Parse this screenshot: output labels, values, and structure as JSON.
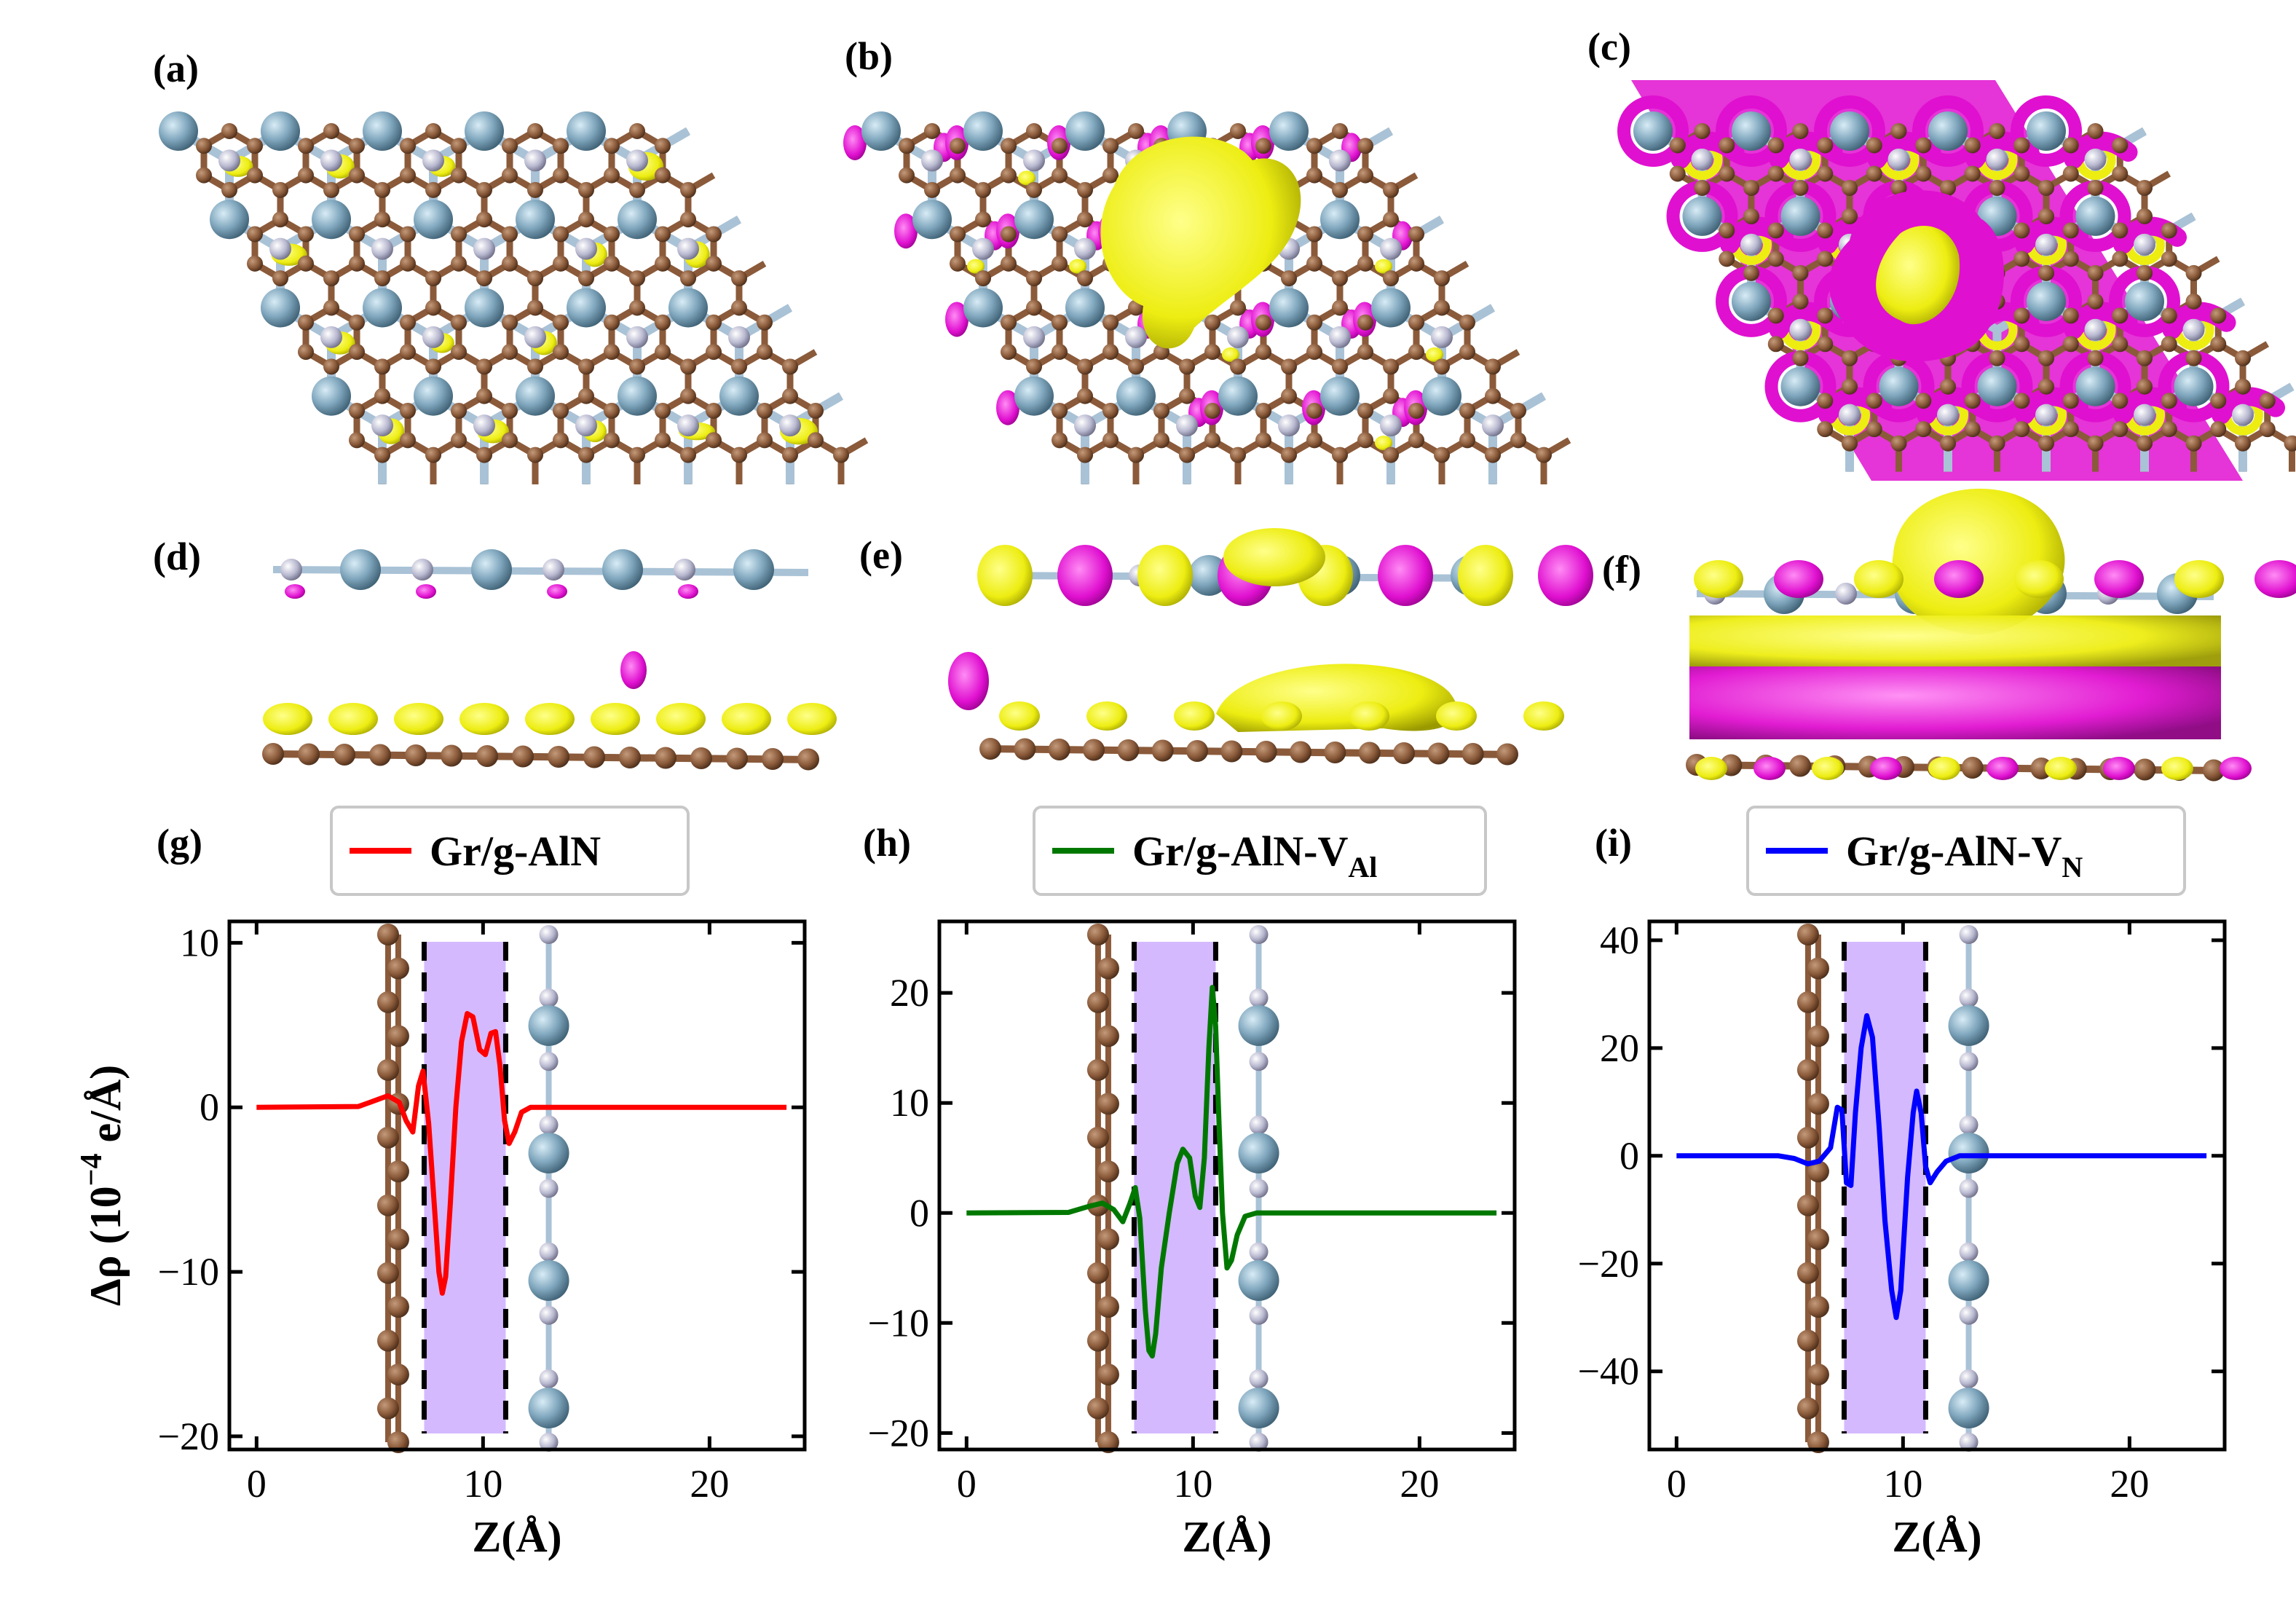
{
  "panel_labels": [
    "(a)",
    "(b)",
    "(c)",
    "(d)",
    "(e)",
    "(f)",
    "(g)",
    "(h)",
    "(i)"
  ],
  "colors": {
    "carbon": "#8a5a3a",
    "aluminium": "#7fa6bd",
    "nitrogen": "#b8b8d0",
    "bond": "#a9c2d6",
    "accumulation": "#eded12",
    "depletion": "#e010d0",
    "interface_shade": "#c9a8ff"
  },
  "chart_data": [
    {
      "type": "line",
      "panel": "(g)",
      "xlabel": "Z(Å)",
      "ylabel": "Δρ (10",
      "ylabel_exponent": "−4",
      "ylabel_unit": " e/Å)",
      "xlim": [
        -1.2,
        24.2
      ],
      "ylim": [
        -20.8,
        11.3
      ],
      "xticks": [
        0,
        10,
        20
      ],
      "yticks": [
        -20,
        -10,
        0,
        10
      ],
      "interface_region": [
        7.4,
        11.0
      ],
      "series": [
        {
          "name": "Gr/g-AlN",
          "name_subscript": "",
          "color": "#ff0000",
          "points": [
            [
              0,
              0
            ],
            [
              4.5,
              0.05
            ],
            [
              5.2,
              0.4
            ],
            [
              5.8,
              0.7
            ],
            [
              6.3,
              0.3
            ],
            [
              6.6,
              -0.8
            ],
            [
              6.9,
              -1.5
            ],
            [
              7.15,
              1.3
            ],
            [
              7.35,
              2.2
            ],
            [
              7.6,
              -1.0
            ],
            [
              7.85,
              -6.0
            ],
            [
              8.05,
              -10.0
            ],
            [
              8.2,
              -11.3
            ],
            [
              8.35,
              -10.3
            ],
            [
              8.55,
              -6.0
            ],
            [
              8.8,
              0
            ],
            [
              9.05,
              4.0
            ],
            [
              9.3,
              5.7
            ],
            [
              9.55,
              5.5
            ],
            [
              9.85,
              3.5
            ],
            [
              10.1,
              3.2
            ],
            [
              10.35,
              4.5
            ],
            [
              10.55,
              4.6
            ],
            [
              10.75,
              2.5
            ],
            [
              10.95,
              -0.8
            ],
            [
              11.15,
              -2.2
            ],
            [
              11.4,
              -1.5
            ],
            [
              11.7,
              -0.3
            ],
            [
              12.1,
              0
            ],
            [
              14,
              0
            ],
            [
              23.4,
              0
            ]
          ]
        }
      ]
    },
    {
      "type": "line",
      "panel": "(h)",
      "xlabel": "Z(Å)",
      "xlim": [
        -1.2,
        24.2
      ],
      "ylim": [
        -21.5,
        26.5
      ],
      "xticks": [
        0,
        10,
        20
      ],
      "yticks": [
        -20,
        -10,
        0,
        10,
        20
      ],
      "interface_region": [
        7.4,
        11.0
      ],
      "series": [
        {
          "name": "Gr/g-AlN-V",
          "name_subscript": "Al",
          "color": "#007800",
          "points": [
            [
              0,
              0
            ],
            [
              4.5,
              0.05
            ],
            [
              5.4,
              0.6
            ],
            [
              6.0,
              0.9
            ],
            [
              6.5,
              0.3
            ],
            [
              6.9,
              -0.8
            ],
            [
              7.2,
              0.8
            ],
            [
              7.45,
              2.3
            ],
            [
              7.65,
              -0.5
            ],
            [
              7.9,
              -9.0
            ],
            [
              8.05,
              -12.5
            ],
            [
              8.2,
              -13.0
            ],
            [
              8.35,
              -11.0
            ],
            [
              8.6,
              -5.0
            ],
            [
              8.95,
              0
            ],
            [
              9.3,
              4.5
            ],
            [
              9.55,
              5.8
            ],
            [
              9.85,
              5.0
            ],
            [
              10.1,
              1.5
            ],
            [
              10.3,
              0.5
            ],
            [
              10.5,
              5.0
            ],
            [
              10.7,
              15.0
            ],
            [
              10.85,
              20.5
            ],
            [
              11.0,
              17.0
            ],
            [
              11.15,
              8.0
            ],
            [
              11.3,
              0
            ],
            [
              11.5,
              -5.0
            ],
            [
              11.7,
              -4.3
            ],
            [
              11.95,
              -2.0
            ],
            [
              12.3,
              -0.3
            ],
            [
              12.8,
              0
            ],
            [
              14,
              0
            ],
            [
              23.4,
              0
            ]
          ]
        }
      ]
    },
    {
      "type": "line",
      "panel": "(i)",
      "xlabel": "Z(Å)",
      "xlim": [
        -1.2,
        24.2
      ],
      "ylim": [
        -54.5,
        43.5
      ],
      "xticks": [
        0,
        10,
        20
      ],
      "yticks": [
        -40,
        -20,
        0,
        20,
        40
      ],
      "interface_region": [
        7.4,
        11.0
      ],
      "series": [
        {
          "name": "Gr/g-AlN-V",
          "name_subscript": "N",
          "color": "#0000ff",
          "points": [
            [
              0,
              0
            ],
            [
              4.5,
              0
            ],
            [
              5.2,
              -0.5
            ],
            [
              5.8,
              -1.5
            ],
            [
              6.3,
              -1.0
            ],
            [
              6.8,
              1.5
            ],
            [
              7.1,
              9.0
            ],
            [
              7.3,
              8.5
            ],
            [
              7.5,
              -5.0
            ],
            [
              7.7,
              -5.5
            ],
            [
              7.9,
              8.0
            ],
            [
              8.15,
              20.0
            ],
            [
              8.4,
              26.0
            ],
            [
              8.65,
              22.0
            ],
            [
              8.95,
              5.0
            ],
            [
              9.2,
              -12.0
            ],
            [
              9.5,
              -25.0
            ],
            [
              9.7,
              -30.0
            ],
            [
              9.9,
              -25.0
            ],
            [
              10.2,
              -4.0
            ],
            [
              10.45,
              8.0
            ],
            [
              10.6,
              12.0
            ],
            [
              10.8,
              8.0
            ],
            [
              11.0,
              -2.0
            ],
            [
              11.2,
              -5.0
            ],
            [
              11.5,
              -3.0
            ],
            [
              11.9,
              -1.0
            ],
            [
              12.5,
              0
            ],
            [
              14,
              0
            ],
            [
              23.4,
              0
            ]
          ]
        }
      ]
    }
  ]
}
